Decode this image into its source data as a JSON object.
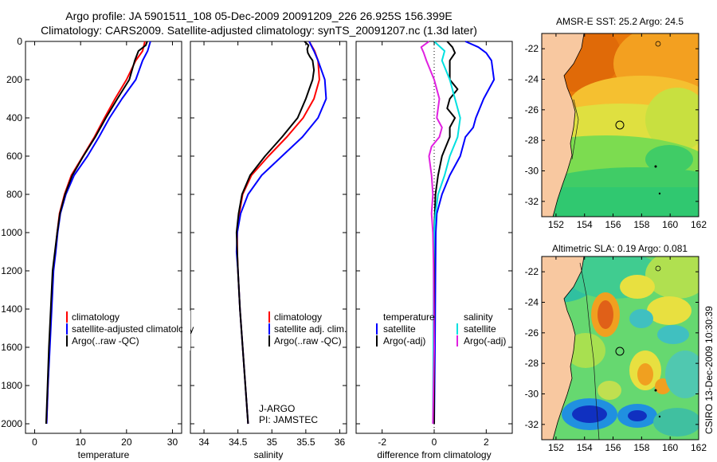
{
  "title_line1": "Argo profile: JA 5901511_108 05-Dec-2009 20091209_226 26.925S 156.399E",
  "title_line2": "Climatology: CARS2009. Satellite-adjusted climatology: synTS_20091207.nc (1.3d later)",
  "side_label": "CSIRO 13-Dec-2009 10:30:39",
  "chart_data": [
    {
      "type": "line",
      "name": "temperature-panel",
      "xlabel": "temperature",
      "ylabel": "",
      "xlim": [
        -2,
        32
      ],
      "ylim": [
        2050,
        0
      ],
      "xticks": [
        0,
        10,
        20,
        30
      ],
      "yticks": [
        0,
        200,
        400,
        600,
        800,
        1000,
        1200,
        1400,
        1600,
        1800,
        2000
      ],
      "legend": [
        "climatology",
        "satellite-adjusted climatology",
        "Argo(..raw -QC)"
      ],
      "series": [
        {
          "name": "climatology",
          "color": "#ff0000",
          "points": [
            [
              24.0,
              0
            ],
            [
              23.5,
              50
            ],
            [
              22.0,
              100
            ],
            [
              20.0,
              200
            ],
            [
              17.5,
              300
            ],
            [
              15.2,
              400
            ],
            [
              13.0,
              500
            ],
            [
              10.5,
              600
            ],
            [
              8.0,
              700
            ],
            [
              6.5,
              800
            ],
            [
              5.4,
              900
            ],
            [
              4.9,
              1000
            ],
            [
              4.5,
              1100
            ],
            [
              4.0,
              1200
            ],
            [
              3.6,
              1400
            ],
            [
              3.2,
              1600
            ],
            [
              2.9,
              1800
            ],
            [
              2.6,
              2000
            ]
          ]
        },
        {
          "name": "satellite",
          "color": "#0000ff",
          "points": [
            [
              25.2,
              0
            ],
            [
              24.6,
              50
            ],
            [
              23.5,
              100
            ],
            [
              22.0,
              200
            ],
            [
              19.0,
              300
            ],
            [
              16.3,
              400
            ],
            [
              14.0,
              500
            ],
            [
              11.5,
              600
            ],
            [
              8.6,
              700
            ],
            [
              6.8,
              800
            ],
            [
              5.6,
              900
            ],
            [
              5.0,
              1000
            ],
            [
              4.6,
              1100
            ],
            [
              4.1,
              1200
            ],
            [
              3.7,
              1400
            ],
            [
              3.3,
              1600
            ],
            [
              2.9,
              1800
            ],
            [
              2.6,
              2000
            ]
          ]
        },
        {
          "name": "argo",
          "color": "#000000",
          "points": [
            [
              24.5,
              0
            ],
            [
              24.2,
              20
            ],
            [
              22.6,
              50
            ],
            [
              21.8,
              100
            ],
            [
              20.6,
              200
            ],
            [
              18.0,
              300
            ],
            [
              15.5,
              400
            ],
            [
              13.2,
              500
            ],
            [
              10.6,
              600
            ],
            [
              8.2,
              700
            ],
            [
              6.6,
              800
            ],
            [
              5.5,
              900
            ],
            [
              4.9,
              1000
            ],
            [
              4.4,
              1100
            ],
            [
              3.9,
              1200
            ],
            [
              3.5,
              1400
            ],
            [
              3.1,
              1600
            ],
            [
              2.8,
              1800
            ],
            [
              2.5,
              2000
            ]
          ]
        }
      ]
    },
    {
      "type": "line",
      "name": "salinity-panel",
      "xlabel": "salinity",
      "xlim": [
        33.8,
        36.1
      ],
      "ylim": [
        2050,
        0
      ],
      "xticks": [
        34,
        34.5,
        35,
        35.5,
        36
      ],
      "legend": [
        "climatology",
        "satellite adj. clim.",
        "Argo(..raw -QC)"
      ],
      "annotation": [
        "J-ARGO",
        "PI: JAMSTEC"
      ],
      "series": [
        {
          "name": "climatology",
          "color": "#ff0000",
          "points": [
            [
              35.55,
              0
            ],
            [
              35.63,
              50
            ],
            [
              35.68,
              100
            ],
            [
              35.7,
              200
            ],
            [
              35.62,
              300
            ],
            [
              35.46,
              400
            ],
            [
              35.22,
              500
            ],
            [
              34.95,
              600
            ],
            [
              34.7,
              700
            ],
            [
              34.57,
              800
            ],
            [
              34.52,
              900
            ],
            [
              34.49,
              1000
            ],
            [
              34.49,
              1100
            ],
            [
              34.5,
              1200
            ],
            [
              34.53,
              1400
            ],
            [
              34.57,
              1600
            ],
            [
              34.61,
              1800
            ],
            [
              34.65,
              2000
            ]
          ]
        },
        {
          "name": "satellite",
          "color": "#0000ff",
          "points": [
            [
              35.55,
              0
            ],
            [
              35.62,
              50
            ],
            [
              35.68,
              100
            ],
            [
              35.78,
              200
            ],
            [
              35.8,
              300
            ],
            [
              35.68,
              400
            ],
            [
              35.45,
              500
            ],
            [
              35.15,
              600
            ],
            [
              34.85,
              700
            ],
            [
              34.65,
              800
            ],
            [
              34.54,
              900
            ],
            [
              34.49,
              1000
            ],
            [
              34.48,
              1100
            ],
            [
              34.5,
              1200
            ],
            [
              34.53,
              1400
            ],
            [
              34.57,
              1600
            ],
            [
              34.61,
              1800
            ],
            [
              34.65,
              2000
            ]
          ]
        },
        {
          "name": "argo",
          "color": "#000000",
          "points": [
            [
              35.48,
              0
            ],
            [
              35.54,
              20
            ],
            [
              35.52,
              40
            ],
            [
              35.53,
              60
            ],
            [
              35.56,
              80
            ],
            [
              35.6,
              100
            ],
            [
              35.62,
              150
            ],
            [
              35.6,
              200
            ],
            [
              35.55,
              250
            ],
            [
              35.5,
              300
            ],
            [
              35.38,
              400
            ],
            [
              35.15,
              500
            ],
            [
              34.9,
              600
            ],
            [
              34.68,
              700
            ],
            [
              34.56,
              800
            ],
            [
              34.51,
              900
            ],
            [
              34.48,
              1000
            ],
            [
              34.49,
              1100
            ],
            [
              34.5,
              1200
            ],
            [
              34.53,
              1400
            ],
            [
              34.57,
              1600
            ],
            [
              34.61,
              1800
            ],
            [
              34.65,
              2000
            ]
          ]
        }
      ]
    },
    {
      "type": "line",
      "name": "difference-panel",
      "xlabel": "difference from climatology",
      "xlim": [
        -3,
        3
      ],
      "ylim": [
        2050,
        0
      ],
      "xticks": [
        -2,
        0,
        2
      ],
      "legend_left_title": "temperature",
      "legend_right_title": "salinity",
      "legend_left": [
        "satellite",
        "Argo(-adj)"
      ],
      "legend_right": [
        "satellite",
        "Argo(-adj)"
      ],
      "series": [
        {
          "name": "temperature satellite",
          "color": "#0000ff",
          "points": [
            [
              1.2,
              0
            ],
            [
              1.7,
              30
            ],
            [
              2.0,
              60
            ],
            [
              2.2,
              100
            ],
            [
              2.3,
              200
            ],
            [
              1.9,
              300
            ],
            [
              1.6,
              400
            ],
            [
              1.5,
              450
            ],
            [
              1.2,
              500
            ],
            [
              1.0,
              600
            ],
            [
              0.6,
              700
            ],
            [
              0.3,
              800
            ],
            [
              0.1,
              900
            ],
            [
              0.06,
              1000
            ],
            [
              0.05,
              1200
            ],
            [
              0.03,
              1600
            ],
            [
              0.0,
              2000
            ]
          ]
        },
        {
          "name": "temperature argo",
          "color": "#000000",
          "points": [
            [
              0.5,
              0
            ],
            [
              0.7,
              30
            ],
            [
              0.8,
              60
            ],
            [
              0.6,
              100
            ],
            [
              0.6,
              200
            ],
            [
              0.9,
              250
            ],
            [
              0.6,
              300
            ],
            [
              0.5,
              350
            ],
            [
              0.8,
              400
            ],
            [
              0.6,
              450
            ],
            [
              0.6,
              500
            ],
            [
              0.3,
              600
            ],
            [
              0.15,
              700
            ],
            [
              0.05,
              800
            ],
            [
              0.0,
              1000
            ],
            [
              0.0,
              1200
            ],
            [
              0.0,
              1600
            ],
            [
              0.0,
              2000
            ]
          ]
        },
        {
          "name": "salinity satellite",
          "color": "#00e0e0",
          "points": [
            [
              0.0,
              0
            ],
            [
              0.4,
              50
            ],
            [
              0.3,
              100
            ],
            [
              0.6,
              200
            ],
            [
              0.8,
              300
            ],
            [
              1.0,
              400
            ],
            [
              0.9,
              500
            ],
            [
              0.6,
              600
            ],
            [
              0.4,
              700
            ],
            [
              0.15,
              800
            ],
            [
              0.05,
              900
            ],
            [
              0.0,
              1000
            ],
            [
              -0.02,
              1200
            ],
            [
              -0.03,
              1600
            ],
            [
              -0.05,
              2000
            ]
          ]
        },
        {
          "name": "salinity argo",
          "color": "#e020e0",
          "points": [
            [
              -0.2,
              0
            ],
            [
              -0.5,
              30
            ],
            [
              -0.4,
              60
            ],
            [
              -0.3,
              100
            ],
            [
              0.0,
              200
            ],
            [
              0.2,
              300
            ],
            [
              0.1,
              400
            ],
            [
              0.3,
              450
            ],
            [
              0.2,
              500
            ],
            [
              -0.1,
              550
            ],
            [
              -0.2,
              600
            ],
            [
              -0.1,
              700
            ],
            [
              -0.05,
              800
            ],
            [
              -0.1,
              900
            ],
            [
              -0.05,
              1000
            ],
            [
              -0.02,
              1200
            ],
            [
              0.0,
              1600
            ],
            [
              -0.05,
              2000
            ]
          ]
        }
      ]
    },
    {
      "type": "heatmap",
      "name": "sst-map",
      "title": "AMSR-E SST: 25.2 Argo: 24.5",
      "xlim": [
        151,
        162
      ],
      "ylim": [
        -33,
        -21
      ],
      "xticks": [
        152,
        154,
        156,
        158,
        160,
        162
      ],
      "yticks": [
        -22,
        -24,
        -26,
        -28,
        -30,
        -32
      ],
      "marker": [
        156.4,
        -26.9
      ]
    },
    {
      "type": "heatmap",
      "name": "sla-map",
      "title": "Altimetric SLA: 0.19 Argo: 0.081",
      "xlim": [
        151,
        162
      ],
      "ylim": [
        -33,
        -21
      ],
      "xticks": [
        152,
        154,
        156,
        158,
        160,
        162
      ],
      "yticks": [
        -22,
        -24,
        -26,
        -28,
        -30,
        -32
      ],
      "marker": [
        156.4,
        -26.9
      ]
    }
  ]
}
